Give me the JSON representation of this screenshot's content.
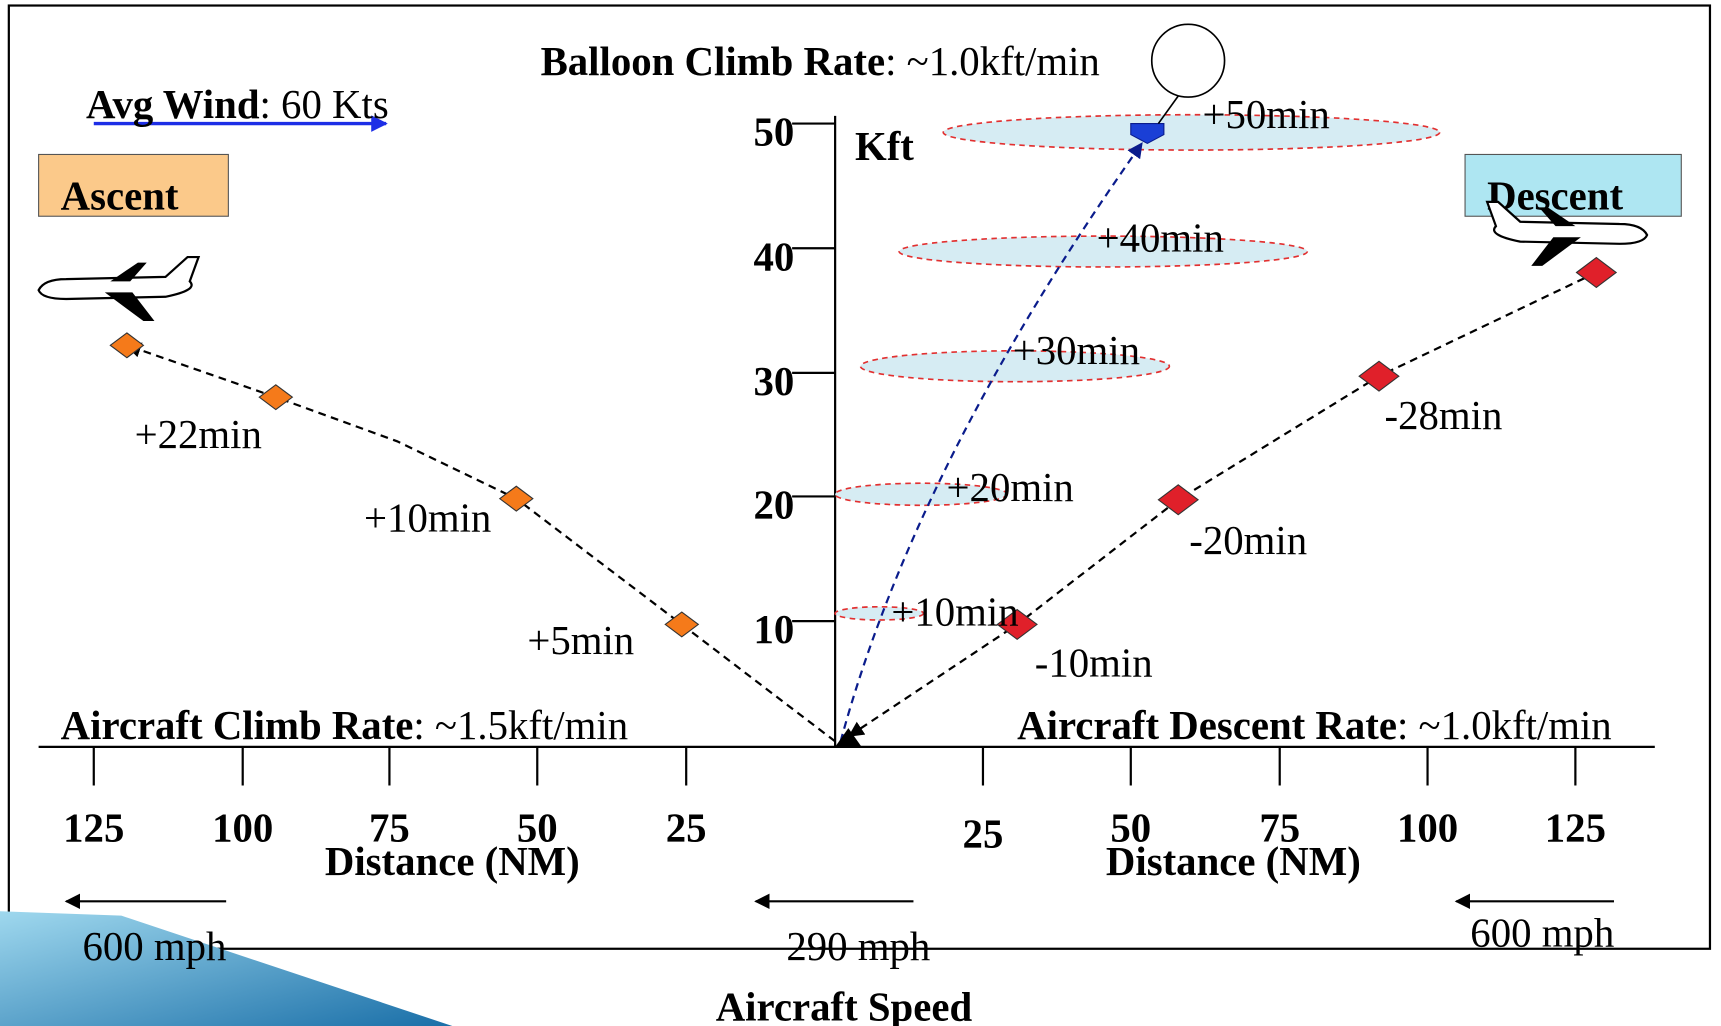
{
  "title": {
    "label": "Balloon Climb Rate",
    "value": ": ~1.0kft/min"
  },
  "wind": {
    "label": "Avg Wind",
    "value": ": 60 Kts"
  },
  "ascent": "Ascent",
  "descent": "Descent",
  "y_unit": "Kft",
  "y_ticks": [
    "10",
    "20",
    "30",
    "40",
    "50"
  ],
  "x_ticks_left": [
    "125",
    "100",
    "75",
    "50",
    "25"
  ],
  "x_ticks_right": [
    "25",
    "50",
    "75",
    "100",
    "125"
  ],
  "x_axis_labels": [
    "Distance (NM)",
    "Distance (NM)"
  ],
  "climb_rate": {
    "label": "Aircraft Climb Rate",
    "value": ": ~1.5kft/min"
  },
  "descent_rate": {
    "label": "Aircraft Descent Rate",
    "value": ": ~1.0kft/min"
  },
  "ascent_times": [
    "+5min",
    "+10min",
    "+22min"
  ],
  "balloon_times": [
    "+10min",
    "+20min",
    "+30min",
    "+40min",
    "+50min"
  ],
  "descent_times": [
    "-10min",
    "-20min",
    "-28min"
  ],
  "speeds": [
    "600 mph",
    "290 mph",
    "600 mph"
  ],
  "speed_label": "Aircraft Speed"
}
